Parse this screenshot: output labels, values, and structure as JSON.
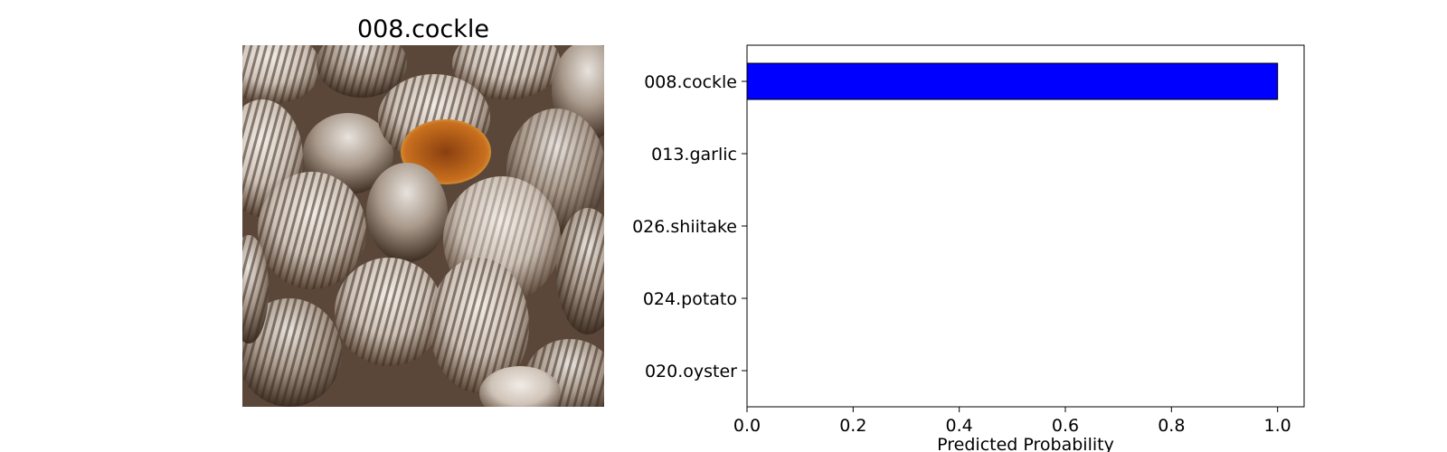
{
  "image_panel": {
    "title": "008.cockle",
    "image_subject": "cockle-shells-photo"
  },
  "chart_data": {
    "type": "bar",
    "orientation": "horizontal",
    "categories": [
      "008.cockle",
      "013.garlic",
      "026.shiitake",
      "024.potato",
      "020.oyster"
    ],
    "values": [
      1.0,
      0.0,
      0.0,
      0.0,
      0.0
    ],
    "title": "",
    "xlabel": "Predicted Probability",
    "ylabel": "",
    "xlim": [
      0,
      1.05
    ],
    "xticks": [
      "0.0",
      "0.2",
      "0.4",
      "0.6",
      "0.8",
      "1.0"
    ],
    "xtick_values": [
      0,
      0.2,
      0.4,
      0.6,
      0.8,
      1.0
    ],
    "bar_color": "#0000ff",
    "bar_edge_color": "#000000",
    "grid": false,
    "legend": "none"
  }
}
